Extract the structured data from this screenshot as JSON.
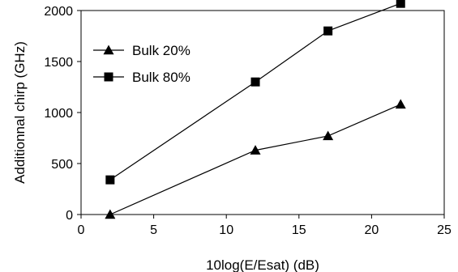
{
  "chart_data": {
    "type": "line",
    "title": "",
    "xlabel": "10log(E/Esat) (dB)",
    "ylabel": "Additionnal chirp (GHz)",
    "xlim": [
      0,
      25
    ],
    "ylim": [
      0,
      2000
    ],
    "xticks": [
      0,
      5,
      10,
      15,
      20,
      25
    ],
    "yticks": [
      0,
      500,
      1000,
      1500,
      2000
    ],
    "grid": false,
    "legend_position": "top-left",
    "series": [
      {
        "name": "Bulk 20%",
        "marker": "triangle",
        "color": "#000000",
        "x": [
          2,
          12,
          17,
          22
        ],
        "y": [
          0,
          630,
          770,
          1080
        ]
      },
      {
        "name": "Bulk 80%",
        "marker": "square",
        "color": "#000000",
        "x": [
          2,
          12,
          17,
          22
        ],
        "y": [
          340,
          1300,
          1800,
          2070
        ]
      }
    ]
  }
}
